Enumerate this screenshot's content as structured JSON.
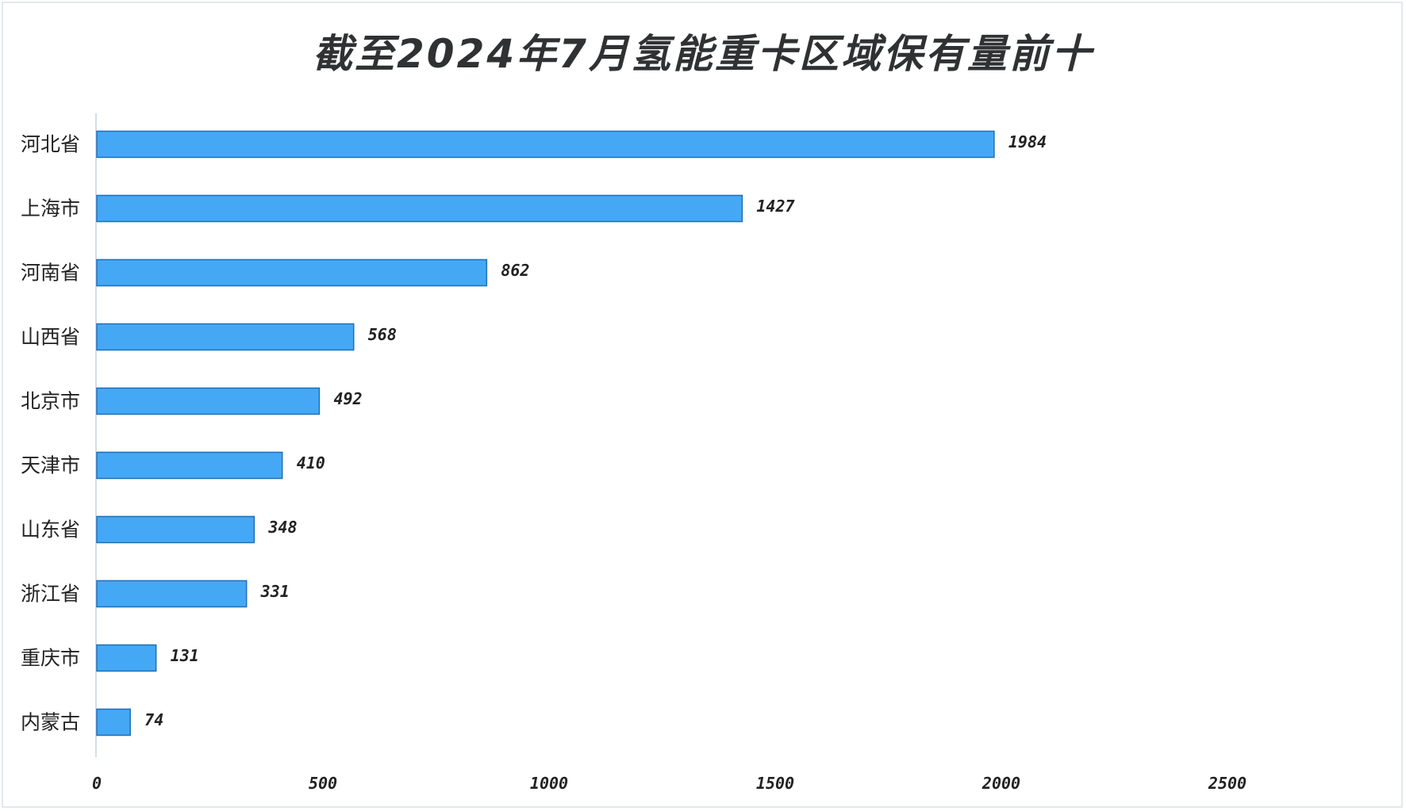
{
  "chart_data": {
    "type": "bar",
    "orientation": "horizontal",
    "title": "截至2024年7月氢能重卡区域保有量前十",
    "categories": [
      "河北省",
      "上海市",
      "河南省",
      "山西省",
      "北京市",
      "天津市",
      "山东省",
      "浙江省",
      "重庆市",
      "内蒙古"
    ],
    "values": [
      1984,
      1427,
      862,
      568,
      492,
      410,
      348,
      331,
      131,
      74
    ],
    "xticks": [
      "0",
      "500",
      "1000",
      "1500",
      "2000",
      "2500"
    ],
    "xlim": [
      0,
      2500
    ],
    "grid": false,
    "legend": "none",
    "bar_color": "#45a8f5",
    "bar_edge_color": "#1f6fb8"
  }
}
